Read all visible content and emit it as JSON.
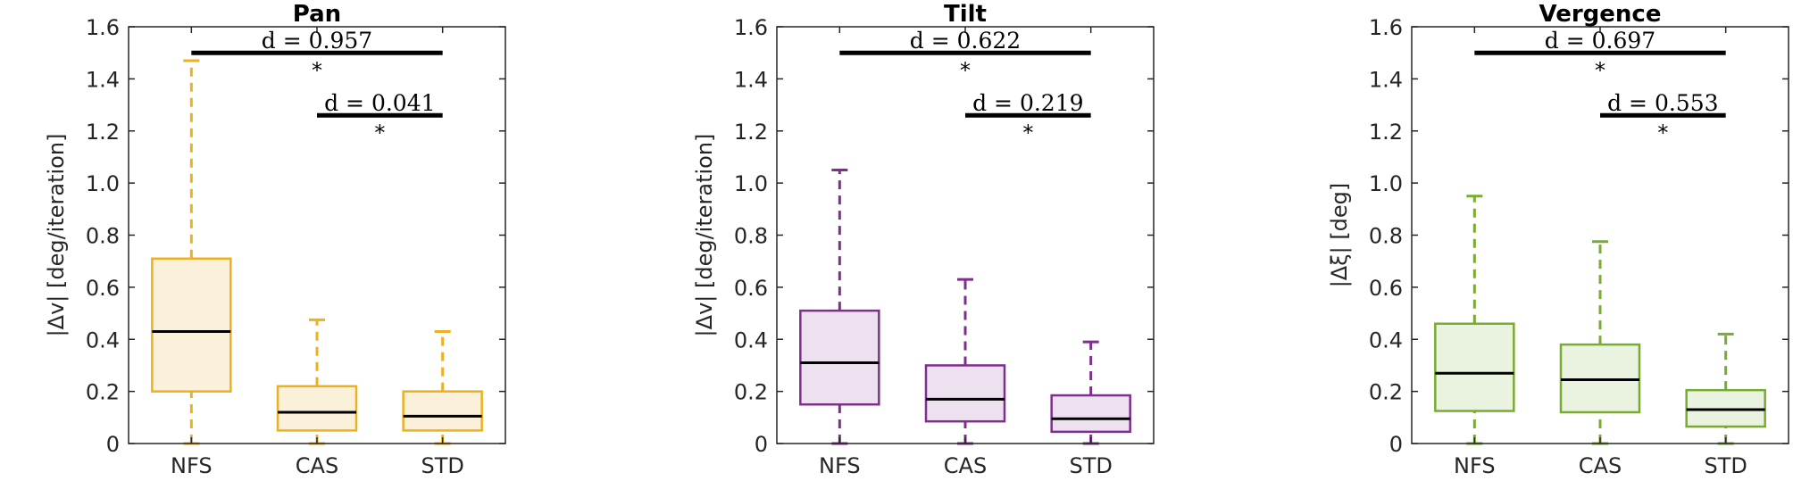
{
  "chart_data": [
    {
      "type": "box",
      "title": "Pan",
      "ylabel": "|Δv| [deg/iteration]",
      "ylim": [
        0,
        1.6
      ],
      "yticks": [
        "0",
        "0.2",
        "0.4",
        "0.6",
        "0.8",
        "1.0",
        "1.2",
        "1.4",
        "1.6"
      ],
      "categories": [
        "NFS",
        "CAS",
        "STD"
      ],
      "color": "#EDB120",
      "fill": "#FBF1DA",
      "boxes": [
        {
          "category": "NFS",
          "whisker_low": 0.0,
          "q1": 0.2,
          "median": 0.43,
          "q3": 0.71,
          "whisker_high": 1.47
        },
        {
          "category": "CAS",
          "whisker_low": 0.0,
          "q1": 0.05,
          "median": 0.12,
          "q3": 0.22,
          "whisker_high": 0.475
        },
        {
          "category": "STD",
          "whisker_low": 0.0,
          "q1": 0.05,
          "median": 0.105,
          "q3": 0.2,
          "whisker_high": 0.43
        }
      ],
      "significance": [
        {
          "from": "NFS",
          "to": "STD",
          "y": 1.5,
          "label": "d = 0.957",
          "star": "*"
        },
        {
          "from": "CAS",
          "to": "STD",
          "y": 1.26,
          "label": "d = 0.041",
          "star": "*"
        }
      ]
    },
    {
      "type": "box",
      "title": "Tilt",
      "ylabel": "|Δv| [deg/iteration]",
      "ylim": [
        0,
        1.6
      ],
      "yticks": [
        "0",
        "0.2",
        "0.4",
        "0.6",
        "0.8",
        "1.0",
        "1.2",
        "1.4",
        "1.6"
      ],
      "categories": [
        "NFS",
        "CAS",
        "STD"
      ],
      "color": "#7E2F8E",
      "fill": "#EDE1F0",
      "boxes": [
        {
          "category": "NFS",
          "whisker_low": 0.0,
          "q1": 0.15,
          "median": 0.31,
          "q3": 0.51,
          "whisker_high": 1.05
        },
        {
          "category": "CAS",
          "whisker_low": 0.0,
          "q1": 0.085,
          "median": 0.17,
          "q3": 0.3,
          "whisker_high": 0.63
        },
        {
          "category": "STD",
          "whisker_low": 0.0,
          "q1": 0.045,
          "median": 0.095,
          "q3": 0.185,
          "whisker_high": 0.39
        }
      ],
      "significance": [
        {
          "from": "NFS",
          "to": "STD",
          "y": 1.5,
          "label": "d = 0.622",
          "star": "*"
        },
        {
          "from": "CAS",
          "to": "STD",
          "y": 1.26,
          "label": "d = 0.219",
          "star": "*"
        }
      ]
    },
    {
      "type": "box",
      "title": "Vergence",
      "ylabel": "|Δξ| [deg]",
      "ylim": [
        0,
        1.6
      ],
      "yticks": [
        "0",
        "0.2",
        "0.4",
        "0.6",
        "0.8",
        "1.0",
        "1.2",
        "1.4",
        "1.6"
      ],
      "categories": [
        "NFS",
        "CAS",
        "STD"
      ],
      "color": "#77AC30",
      "fill": "#EAF2E0",
      "boxes": [
        {
          "category": "NFS",
          "whisker_low": 0.0,
          "q1": 0.125,
          "median": 0.27,
          "q3": 0.46,
          "whisker_high": 0.95
        },
        {
          "category": "CAS",
          "whisker_low": 0.0,
          "q1": 0.12,
          "median": 0.245,
          "q3": 0.38,
          "whisker_high": 0.775
        },
        {
          "category": "STD",
          "whisker_low": 0.0,
          "q1": 0.065,
          "median": 0.13,
          "q3": 0.205,
          "whisker_high": 0.42
        }
      ],
      "significance": [
        {
          "from": "NFS",
          "to": "STD",
          "y": 1.5,
          "label": "d = 0.697",
          "star": "*"
        },
        {
          "from": "CAS",
          "to": "STD",
          "y": 1.26,
          "label": "d = 0.553",
          "star": "*"
        }
      ]
    }
  ]
}
